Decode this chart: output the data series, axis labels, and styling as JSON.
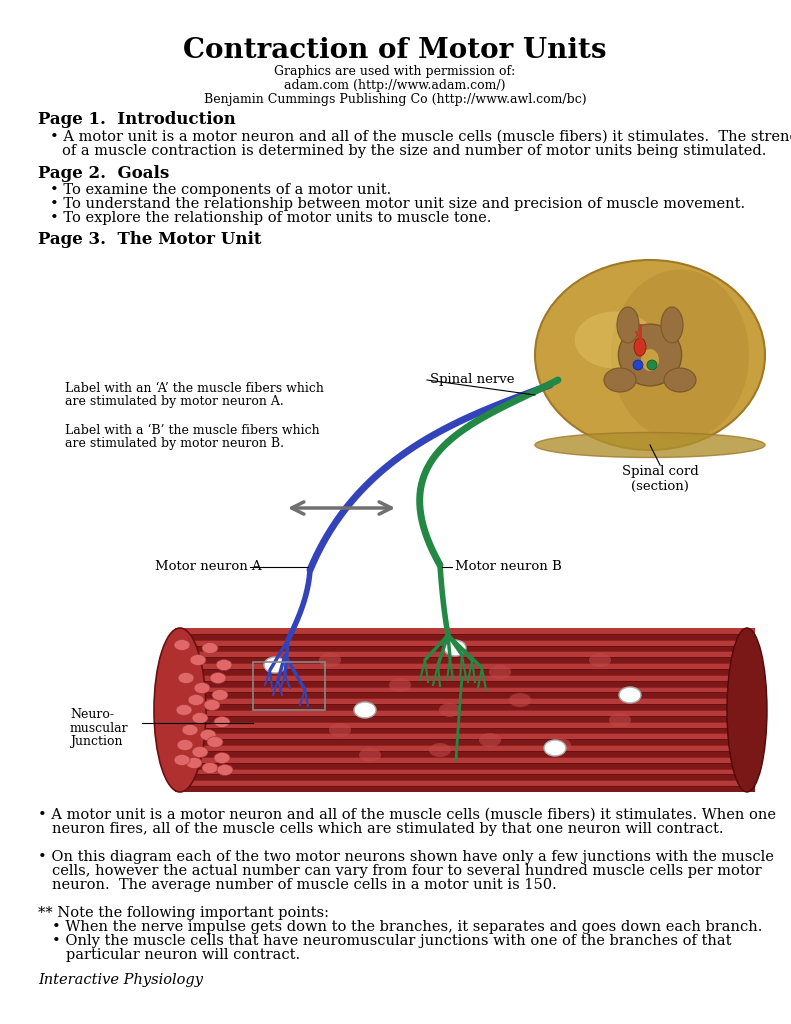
{
  "title": "Contraction of Motor Units",
  "subtitle_lines": [
    "Graphics are used with permission of:",
    "adam.com (http://www.adam.com/)",
    "Benjamin Cummings Publishing Co (http://www.awl.com/bc)"
  ],
  "page1_header": "Page 1.  Introduction",
  "page2_header": "Page 2.  Goals",
  "page2_bullets": [
    "To examine the components of a motor unit.",
    "To understand the relationship between motor unit size and precision of muscle movement.",
    "To explore the relationship of motor units to muscle tone."
  ],
  "page3_header": "Page 3.  The Motor Unit",
  "label_A_line1": "Label with an ‘A’ the muscle fibers which",
  "label_A_line2": "are stimulated by motor neuron A.",
  "label_B_line1": "Label with a ‘B’ the muscle fibers which",
  "label_B_line2": "are stimulated by motor neuron B.",
  "spinal_nerve_label": "Spinal nerve",
  "spinal_cord_label": "Spinal cord\n(section)",
  "motor_neuron_A_label": "Motor neuron A",
  "motor_neuron_B_label": "Motor neuron B",
  "neuro_label_line1": "Neuro-",
  "neuro_label_line2": "muscular",
  "neuro_label_line3": "Junction",
  "footer": "Interactive Physiology",
  "bg_color": "#ffffff",
  "text_color": "#000000",
  "title_fontsize": 20,
  "header_fontsize": 12,
  "body_fontsize": 10.5
}
